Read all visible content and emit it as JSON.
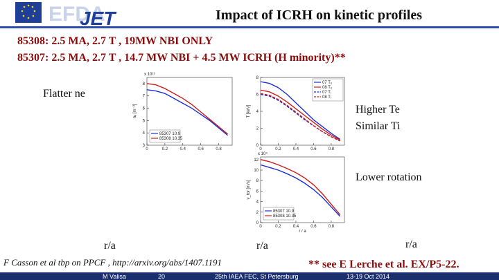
{
  "header": {
    "logo_top": "EFDA",
    "logo_main": "JET",
    "title": "Impact of ICRH on kinetic profiles"
  },
  "lines": [
    "85308: 2.5 MA, 2.7 T , 19MW NBI ONLY",
    "85307: 2.5 MA, 2.7 T , 14.7 MW NBI + 4.5 MW ICRH (H minority)**"
  ],
  "notes": {
    "ne": "Flatter ne",
    "te": "Higher Te",
    "ti": "Similar Ti",
    "rot": "Lower rotation",
    "ra1": "r/a",
    "ra2": "r/a",
    "ra3": "r/a",
    "citation": "F Casson et al tbp on PPCF , http://arxiv.org/abs/1407.1191",
    "ref": "** see E Lerche et al. EX/P5-22."
  },
  "footer": {
    "author": "M Valisa",
    "page": "20",
    "conf": "25th IAEA FEC, St Petersburg",
    "date": "13-19 Oct 2014"
  },
  "chart_data": [
    {
      "type": "line",
      "ylabel": "nₑ [m⁻³]",
      "exponent": "x 10¹⁹",
      "legend": "lower left",
      "x": [
        0,
        0.1,
        0.2,
        0.3,
        0.4,
        0.5,
        0.6,
        0.7,
        0.8,
        0.9
      ],
      "xlim": [
        0,
        0.95
      ],
      "xticks": [
        0,
        0.2,
        0.4,
        0.6,
        0.8
      ],
      "ylim": [
        3,
        8.5
      ],
      "yticks": [
        3,
        4,
        5,
        6,
        7,
        8
      ],
      "series": [
        {
          "name": "85307 10.9",
          "color": "#1a2fd0",
          "values": [
            7.5,
            7.4,
            7.2,
            6.8,
            6.4,
            6.0,
            5.5,
            5.0,
            4.4,
            3.8
          ]
        },
        {
          "name": "85308 10.35",
          "color": "#d01a1a",
          "values": [
            8.0,
            7.9,
            7.6,
            7.2,
            6.8,
            6.3,
            5.7,
            5.1,
            4.5,
            3.9
          ]
        }
      ]
    },
    {
      "type": "line",
      "ylabel": "T [keV]",
      "legend": "upper right",
      "x": [
        0,
        0.1,
        0.2,
        0.3,
        0.4,
        0.5,
        0.6,
        0.7,
        0.8,
        0.9
      ],
      "xlim": [
        0,
        0.95
      ],
      "xticks": [
        0,
        0.2,
        0.4,
        0.6,
        0.8
      ],
      "ylim": [
        0,
        8
      ],
      "yticks": [
        0,
        2,
        4,
        6,
        8
      ],
      "series": [
        {
          "name": "07 Tₑ",
          "color": "#1a2fd0",
          "dash": false,
          "values": [
            7.5,
            7.3,
            6.8,
            6.0,
            5.0,
            4.0,
            3.0,
            2.2,
            1.4,
            0.7
          ]
        },
        {
          "name": "08 Tₑ",
          "color": "#d01a1a",
          "dash": false,
          "values": [
            6.5,
            6.3,
            5.8,
            5.1,
            4.3,
            3.5,
            2.7,
            1.9,
            1.2,
            0.6
          ]
        },
        {
          "name": "07 Tᵢ",
          "color": "#1a2fd0",
          "dash": true,
          "values": [
            6.0,
            5.8,
            5.3,
            4.6,
            3.8,
            3.0,
            2.3,
            1.6,
            1.0,
            0.5
          ]
        },
        {
          "name": "08 Tᵢ",
          "color": "#d01a1a",
          "dash": true,
          "values": [
            6.1,
            5.9,
            5.4,
            4.7,
            3.9,
            3.1,
            2.3,
            1.6,
            1.0,
            0.5
          ]
        }
      ]
    },
    {
      "type": "line",
      "ylabel": "v_tor [m/s]",
      "exponent": "x 10⁴",
      "xlabel": "r / a",
      "legend": "lower left",
      "x": [
        0,
        0.1,
        0.2,
        0.3,
        0.4,
        0.5,
        0.6,
        0.7,
        0.8,
        0.9
      ],
      "xlim": [
        0,
        0.95
      ],
      "xticks": [
        0,
        0.2,
        0.4,
        0.6,
        0.8
      ],
      "ylim": [
        0,
        12.5
      ],
      "yticks": [
        0,
        2,
        4,
        6,
        8,
        10,
        12
      ],
      "series": [
        {
          "name": "85307 10.9",
          "color": "#1a2fd0",
          "values": [
            11,
            10.5,
            10,
            9.3,
            8.5,
            7.5,
            6.3,
            4.8,
            3.0,
            1.2
          ]
        },
        {
          "name": "85308 10.35",
          "color": "#d01a1a",
          "values": [
            12,
            11.6,
            11,
            10.3,
            9.5,
            8.5,
            7.2,
            5.5,
            3.5,
            1.5
          ]
        }
      ]
    }
  ]
}
